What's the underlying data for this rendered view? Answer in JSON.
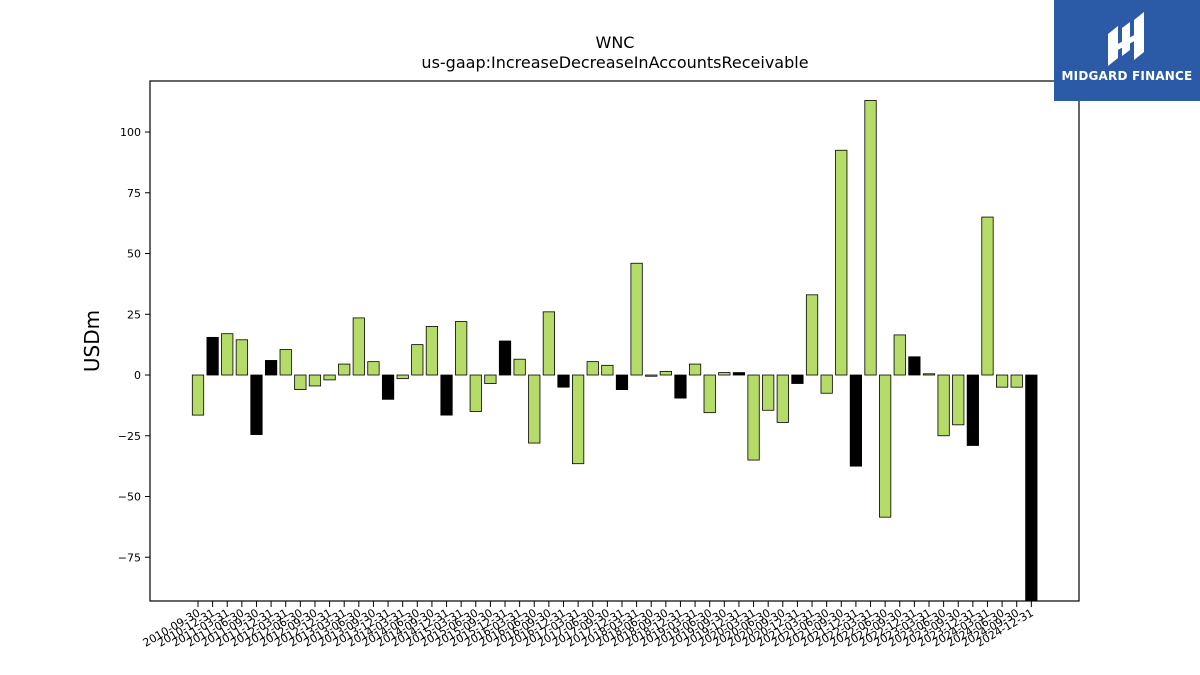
{
  "chart_data": {
    "type": "bar",
    "title": "WNC",
    "subtitle": "us-gaap:IncreaseDecreaseInAccountsReceivable",
    "ylabel": "USDm",
    "ylim": [
      -93,
      121
    ],
    "yticks": [
      -75,
      -50,
      -25,
      0,
      25,
      50,
      75,
      100
    ],
    "categories": [
      "2010-09-30",
      "2010-12-31",
      "2011-03-31",
      "2011-06-30",
      "2011-09-30",
      "2011-12-31",
      "2012-03-31",
      "2012-06-30",
      "2012-09-30",
      "2012-12-31",
      "2013-03-31",
      "2013-06-30",
      "2013-09-30",
      "2013-12-31",
      "2014-03-31",
      "2014-06-30",
      "2014-09-30",
      "2014-12-31",
      "2015-03-31",
      "2015-06-30",
      "2015-09-30",
      "2015-12-31",
      "2016-03-31",
      "2016-06-30",
      "2016-09-30",
      "2016-12-31",
      "2017-03-31",
      "2017-06-30",
      "2017-09-30",
      "2017-12-31",
      "2018-03-31",
      "2018-06-30",
      "2018-09-30",
      "2018-12-31",
      "2019-03-31",
      "2019-06-30",
      "2019-09-30",
      "2019-12-31",
      "2020-03-31",
      "2020-06-30",
      "2020-09-30",
      "2020-12-31",
      "2021-03-31",
      "2021-06-30",
      "2021-09-30",
      "2021-12-31",
      "2022-03-31",
      "2022-06-30",
      "2022-09-30",
      "2022-12-31",
      "2023-03-31",
      "2023-06-30",
      "2023-09-30",
      "2023-12-31",
      "2024-03-31",
      "2024-06-30",
      "2024-09-30",
      "2024-12-31"
    ],
    "values": [
      -16.5,
      15.5,
      17,
      14.5,
      -24.5,
      6,
      10.5,
      -6,
      -4.5,
      -2,
      4.5,
      23.5,
      5.5,
      -10,
      -1.5,
      12.5,
      20,
      -16.5,
      22,
      -15,
      -3.5,
      14,
      6.5,
      -28,
      26,
      -5,
      -36.5,
      5.5,
      4,
      -6,
      46,
      -0.5,
      1.5,
      -9.5,
      4.5,
      -15.5,
      1,
      1,
      -35,
      -14.5,
      -19.5,
      -3.5,
      33,
      -7.5,
      92.5,
      -37.5,
      113,
      -58.5,
      16.5,
      7.5,
      0.5,
      -25,
      -20.5,
      -29,
      65,
      -5,
      -5,
      -95
    ],
    "highlight_indices": [
      1,
      4,
      5,
      13,
      17,
      21,
      25,
      29,
      33,
      37,
      41,
      45,
      49,
      53,
      57
    ],
    "colors": {
      "bar": "#b5dc69",
      "highlight": "#000000",
      "edge": "#000000"
    }
  },
  "logo": {
    "text": "MIDGARD FINANCE",
    "color": "#2b5aa6"
  }
}
